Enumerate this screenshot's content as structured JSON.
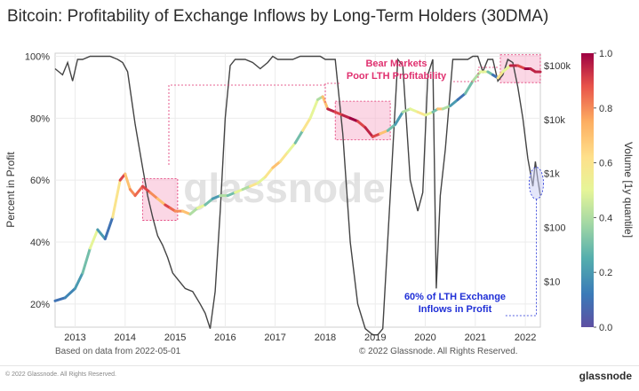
{
  "title": "Bitcoin: Profitability of Exchange Inflows by Long-Term Holders (30DMA)",
  "subtitle_left": "Based on data from 2022-05-01",
  "subtitle_right": "© 2022 Glassnode. All Rights Reserved.",
  "footer_copyright": "© 2022 Glassnode. All Rights Reserved.",
  "footer_brand": "glassnode",
  "watermark": "glassnode",
  "annotations": {
    "bear_line1": "Bear Markets",
    "bear_line2": "Poor LTH Profitability",
    "lth_line1": "60% of LTH Exchange",
    "lth_line2": "Inflows in Profit"
  },
  "colors": {
    "annotation_pink": "#e0306f",
    "annotation_blue": "#1f2fd6",
    "highlight_fill": "#f7b6cf",
    "price_line": "#444444"
  },
  "chart_data": {
    "type": "line",
    "xlabel": "",
    "ylabel": "Percent in Profit",
    "y2label": "",
    "colorbar_label": "Volume [1y quantile]",
    "x_ticks": [
      "2013",
      "2014",
      "2015",
      "2016",
      "2017",
      "2018",
      "2019",
      "2020",
      "2021",
      "2022"
    ],
    "y_ticks": [
      "20%",
      "40%",
      "60%",
      "80%",
      "100%"
    ],
    "y2_ticks": [
      "$10",
      "$100",
      "$1k",
      "$10k",
      "$100k"
    ],
    "colorbar_ticks": [
      "0.0",
      "0.2",
      "0.4",
      "0.6",
      "0.8",
      "1.0"
    ],
    "ylim": [
      0.125,
      1.01
    ],
    "y2_log_range": [
      1,
      5
    ],
    "grid": true,
    "series": [
      {
        "x": [
          2012.6,
          2012.8,
          2013.0,
          2013.15,
          2013.3,
          2013.45,
          2013.6,
          2013.75,
          2013.9,
          2014.0,
          2014.1,
          2014.2,
          2014.35,
          2014.5,
          2014.65,
          2014.8,
          2014.9,
          2015.0,
          2015.15,
          2015.3,
          2015.45,
          2015.6,
          2015.75,
          2015.9,
          2016.05,
          2016.2,
          2016.35,
          2016.5,
          2016.65,
          2016.8,
          2016.95,
          2017.1,
          2017.25,
          2017.4,
          2017.55,
          2017.7,
          2017.85,
          2017.95,
          2018.05,
          2018.2,
          2018.35,
          2018.5,
          2018.65,
          2018.8,
          2018.95,
          2019.1,
          2019.25,
          2019.4,
          2019.55,
          2019.7,
          2019.85,
          2020.0,
          2020.15,
          2020.25,
          2020.35,
          2020.5,
          2020.65,
          2020.8,
          2020.95,
          2021.1,
          2021.25,
          2021.35,
          2021.45,
          2021.55,
          2021.7,
          2021.85,
          2022.0,
          2022.1,
          2022.2,
          2022.3
        ],
        "y": [
          0.21,
          0.22,
          0.25,
          0.3,
          0.38,
          0.44,
          0.41,
          0.48,
          0.6,
          0.62,
          0.57,
          0.55,
          0.58,
          0.56,
          0.54,
          0.52,
          0.51,
          0.5,
          0.5,
          0.49,
          0.51,
          0.52,
          0.54,
          0.55,
          0.55,
          0.56,
          0.57,
          0.58,
          0.59,
          0.61,
          0.64,
          0.66,
          0.69,
          0.72,
          0.76,
          0.8,
          0.86,
          0.87,
          0.83,
          0.82,
          0.81,
          0.8,
          0.79,
          0.77,
          0.74,
          0.75,
          0.76,
          0.78,
          0.82,
          0.83,
          0.82,
          0.81,
          0.82,
          0.83,
          0.83,
          0.84,
          0.86,
          0.88,
          0.92,
          0.95,
          0.95,
          0.94,
          0.93,
          0.95,
          0.97,
          0.97,
          0.96,
          0.96,
          0.95,
          0.95
        ],
        "volume": [
          0.1,
          0.15,
          0.2,
          0.3,
          0.5,
          0.2,
          0.1,
          0.6,
          0.9,
          0.7,
          0.8,
          0.85,
          0.9,
          0.8,
          0.7,
          0.9,
          0.85,
          0.8,
          0.7,
          0.4,
          0.5,
          0.3,
          0.2,
          0.4,
          0.3,
          0.5,
          0.4,
          0.6,
          0.5,
          0.6,
          0.7,
          0.6,
          0.5,
          0.3,
          0.6,
          0.5,
          0.4,
          0.7,
          0.95,
          0.9,
          0.95,
          1.0,
          0.9,
          0.95,
          0.9,
          0.7,
          0.3,
          0.2,
          0.4,
          0.5,
          0.6,
          0.5,
          0.3,
          0.7,
          0.4,
          0.2,
          0.1,
          0.3,
          0.4,
          0.5,
          0.3,
          0.1,
          0.6,
          0.5,
          0.95,
          0.9,
          1.0,
          0.95,
          0.95,
          0.9
        ]
      },
      {
        "x": [
          2012.6,
          2012.75,
          2012.85,
          2012.95,
          2013.05,
          2013.15,
          2013.3,
          2013.5,
          2013.7,
          2013.85,
          2013.95,
          2014.05,
          2014.2,
          2014.35,
          2014.45,
          2014.55,
          2014.65,
          2014.75,
          2014.85,
          2014.95,
          2015.05,
          2015.2,
          2015.35,
          2015.5,
          2015.6,
          2015.7,
          2015.8,
          2015.9,
          2016.0,
          2016.1,
          2016.2,
          2016.3,
          2016.4,
          2016.55,
          2016.7,
          2016.85,
          2016.95,
          2017.05,
          2017.2,
          2017.35,
          2017.5,
          2017.65,
          2017.8,
          2017.9,
          2018.0,
          2018.1,
          2018.2,
          2018.35,
          2018.5,
          2018.65,
          2018.8,
          2018.95,
          2019.05,
          2019.15,
          2019.3,
          2019.45,
          2019.55,
          2019.7,
          2019.85,
          2019.95,
          2020.05,
          2020.15,
          2020.22,
          2020.3,
          2020.4,
          2020.55,
          2020.7,
          2020.85,
          2020.95,
          2021.05,
          2021.15,
          2021.25,
          2021.35,
          2021.45,
          2021.55,
          2021.65,
          2021.75,
          2021.85,
          2021.95,
          2022.05,
          2022.15,
          2022.2,
          2022.25,
          2022.3
        ],
        "y": [
          0.96,
          0.94,
          0.98,
          0.92,
          0.99,
          0.99,
          1.0,
          1.0,
          1.0,
          0.99,
          0.98,
          0.95,
          0.78,
          0.64,
          0.55,
          0.48,
          0.42,
          0.39,
          0.35,
          0.3,
          0.28,
          0.25,
          0.24,
          0.2,
          0.17,
          0.12,
          0.24,
          0.5,
          0.8,
          0.97,
          0.99,
          0.99,
          0.99,
          0.98,
          0.96,
          0.98,
          1.0,
          0.99,
          0.99,
          0.99,
          1.0,
          1.0,
          1.0,
          1.0,
          0.99,
          0.99,
          0.99,
          0.75,
          0.4,
          0.2,
          0.12,
          0.1,
          0.1,
          0.12,
          0.55,
          0.99,
          0.97,
          0.6,
          0.5,
          0.56,
          0.94,
          0.99,
          0.25,
          0.55,
          0.7,
          0.99,
          0.99,
          0.99,
          1.0,
          1.0,
          0.95,
          0.99,
          0.99,
          0.92,
          0.94,
          0.99,
          0.98,
          0.9,
          0.8,
          0.67,
          0.58,
          0.66,
          0.6,
          0.55
        ]
      }
    ],
    "highlights": [
      {
        "x0": 2014.35,
        "x1": 2015.05,
        "y0": 0.47,
        "y1": 0.605
      },
      {
        "x0": 2018.2,
        "x1": 2019.3,
        "y0": 0.73,
        "y1": 0.855
      },
      {
        "x0": 2021.5,
        "x1": 2022.3,
        "y0": 0.915,
        "y1": 1.005
      }
    ]
  }
}
